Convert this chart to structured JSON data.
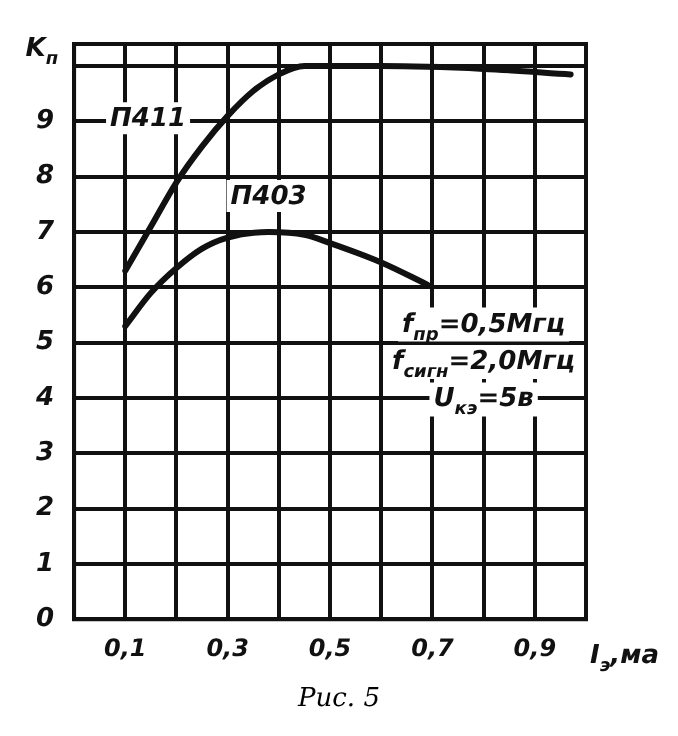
{
  "chart_data": {
    "type": "line",
    "xlabel": "I$_{э}$,ма",
    "ylabel": "K$_{п}$",
    "xlim": [
      0,
      1.0
    ],
    "ylim": [
      0,
      10.4
    ],
    "xticks": [
      {
        "value": 0.1,
        "label": "0,1"
      },
      {
        "value": 0.2,
        "label": null
      },
      {
        "value": 0.3,
        "label": "0,3"
      },
      {
        "value": 0.4,
        "label": null
      },
      {
        "value": 0.5,
        "label": "0,5"
      },
      {
        "value": 0.6,
        "label": null
      },
      {
        "value": 0.7,
        "label": "0,7"
      },
      {
        "value": 0.8,
        "label": null
      },
      {
        "value": 0.9,
        "label": "0,9"
      },
      {
        "value": 1.0,
        "label": null
      }
    ],
    "yticks": [
      0,
      1,
      2,
      3,
      4,
      5,
      6,
      7,
      8,
      9,
      {
        "value": 10,
        "label": null
      }
    ],
    "grid": true,
    "legend": false,
    "marker": "none",
    "line_style": "solid",
    "series": [
      {
        "name": "П411",
        "color": "#111111",
        "x": [
          0.1,
          0.15,
          0.2,
          0.25,
          0.3,
          0.35,
          0.4,
          0.45,
          0.6,
          0.8,
          0.97
        ],
        "values": [
          6.3,
          7.1,
          7.9,
          8.55,
          9.1,
          9.55,
          9.85,
          10,
          10,
          9.95,
          9.85
        ]
      },
      {
        "name": "П403",
        "color": "#111111",
        "x": [
          0.1,
          0.15,
          0.2,
          0.25,
          0.3,
          0.38,
          0.45,
          0.5,
          0.6,
          0.69
        ],
        "values": [
          5.3,
          5.9,
          6.35,
          6.7,
          6.9,
          7.0,
          6.95,
          6.8,
          6.45,
          6.05
        ]
      }
    ],
    "annotations": [
      "f$_{пр}$=0,5Мгц",
      "f$_{сигн}$=2,0Мгц",
      "U$_{кэ}$=5в",
      "Рис. 5"
    ]
  }
}
